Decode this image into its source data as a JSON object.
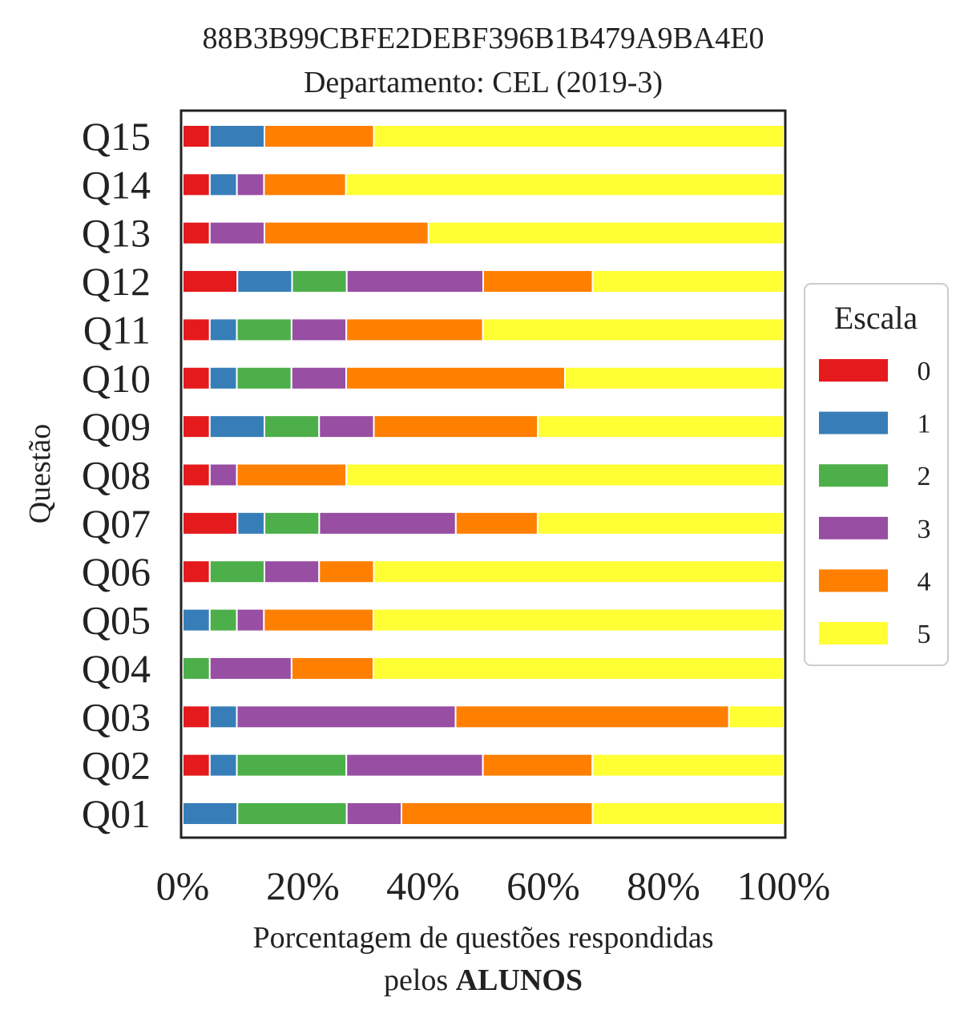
{
  "chart_data": {
    "type": "bar",
    "orientation": "horizontal",
    "stacked": true,
    "title": "88B3B99CBFE2DEBF396B1B479A9BA4E0",
    "subtitle": "Departamento: CEL (2019-3)",
    "ylabel": "Questão",
    "xlabel_line1": "Porcentagem de questões respondidas",
    "xlabel_line2_prefix": "pelos ",
    "xlabel_line2_bold": "ALUNOS",
    "xlim": [
      0,
      100
    ],
    "xticks": [
      "0%",
      "20%",
      "40%",
      "60%",
      "80%",
      "100%"
    ],
    "categories": [
      "Q01",
      "Q02",
      "Q03",
      "Q04",
      "Q05",
      "Q06",
      "Q07",
      "Q08",
      "Q09",
      "Q10",
      "Q11",
      "Q12",
      "Q13",
      "Q14",
      "Q15"
    ],
    "legend": {
      "title": "Escala",
      "position": "right"
    },
    "grid": false,
    "series": [
      {
        "name": "0",
        "color": "#e41a1c",
        "values": [
          0,
          4.5,
          4.5,
          0,
          0,
          4.5,
          9.1,
          4.5,
          4.5,
          4.5,
          4.5,
          9.1,
          4.5,
          4.5,
          4.5
        ]
      },
      {
        "name": "1",
        "color": "#377eb8",
        "values": [
          9.1,
          4.5,
          4.5,
          0,
          4.5,
          0,
          4.5,
          0,
          9.1,
          4.5,
          4.5,
          9.1,
          0,
          4.5,
          9.1
        ]
      },
      {
        "name": "2",
        "color": "#4daf4a",
        "values": [
          18.2,
          18.2,
          0,
          4.5,
          4.5,
          9.1,
          9.1,
          0,
          9.1,
          9.1,
          9.1,
          9.1,
          0,
          0,
          0
        ]
      },
      {
        "name": "3",
        "color": "#984ea3",
        "values": [
          9.1,
          22.7,
          36.4,
          13.6,
          4.5,
          9.1,
          22.7,
          4.5,
          9.1,
          9.1,
          9.1,
          22.7,
          9.1,
          4.5,
          0
        ]
      },
      {
        "name": "4",
        "color": "#ff7f00",
        "values": [
          31.8,
          18.2,
          45.5,
          13.6,
          18.2,
          9.1,
          13.6,
          18.2,
          27.3,
          36.4,
          22.7,
          18.2,
          27.3,
          13.6,
          18.2
        ]
      },
      {
        "name": "5",
        "color": "#ffff33",
        "values": [
          31.8,
          31.8,
          9.1,
          68.2,
          68.2,
          68.2,
          40.9,
          72.7,
          40.9,
          36.4,
          50.0,
          31.8,
          59.1,
          72.7,
          68.2
        ]
      }
    ]
  }
}
